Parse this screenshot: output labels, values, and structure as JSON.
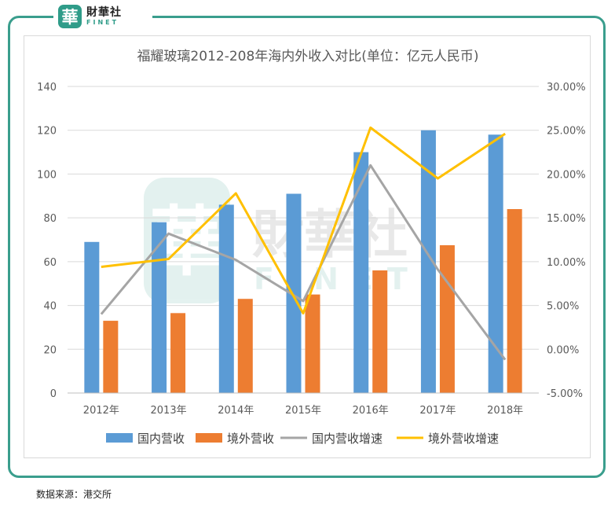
{
  "logo": {
    "mark": "華",
    "cn": "財華社",
    "en": "FINET"
  },
  "watermark": {
    "mark": "華",
    "cn": "財華社",
    "en": "FINET"
  },
  "source": "数据来源：港交所",
  "colors": {
    "domestic": "#5b9bd5",
    "overseas": "#ed7d31",
    "domestic_growth": "#a5a5a5",
    "overseas_growth": "#ffc000",
    "frame": "#3a9e8d"
  },
  "chart_data": {
    "type": "bar",
    "title": "福耀玻璃2012-208年海内外收入对比(单位：亿元人民币)",
    "categories": [
      "2012年",
      "2013年",
      "2014年",
      "2015年",
      "2016年",
      "2017年",
      "2018年"
    ],
    "series": [
      {
        "name": "国内营收",
        "type": "bar",
        "axis": "left",
        "values": [
          69,
          78,
          86,
          91,
          110,
          120,
          118
        ]
      },
      {
        "name": "境外营收",
        "type": "bar",
        "axis": "left",
        "values": [
          33,
          36.5,
          43,
          45,
          56,
          67.5,
          84
        ]
      },
      {
        "name": "国内营收增速",
        "type": "line",
        "axis": "right",
        "values": [
          4.0,
          13.2,
          10.2,
          5.5,
          21.0,
          9.1,
          -1.2
        ]
      },
      {
        "name": "境外营收增速",
        "type": "line",
        "axis": "right",
        "values": [
          9.4,
          10.3,
          17.8,
          4.1,
          25.3,
          19.5,
          24.6
        ]
      }
    ],
    "y_left": {
      "min": 0,
      "max": 140,
      "step": 20,
      "ticks": [
        "0",
        "20",
        "40",
        "60",
        "80",
        "100",
        "120",
        "140"
      ]
    },
    "y_right": {
      "min": -5,
      "max": 30,
      "step": 5,
      "ticks": [
        "-5.00%",
        "0.00%",
        "5.00%",
        "10.00%",
        "15.00%",
        "20.00%",
        "25.00%",
        "30.00%"
      ]
    },
    "grid": true,
    "legend": "bottom"
  }
}
